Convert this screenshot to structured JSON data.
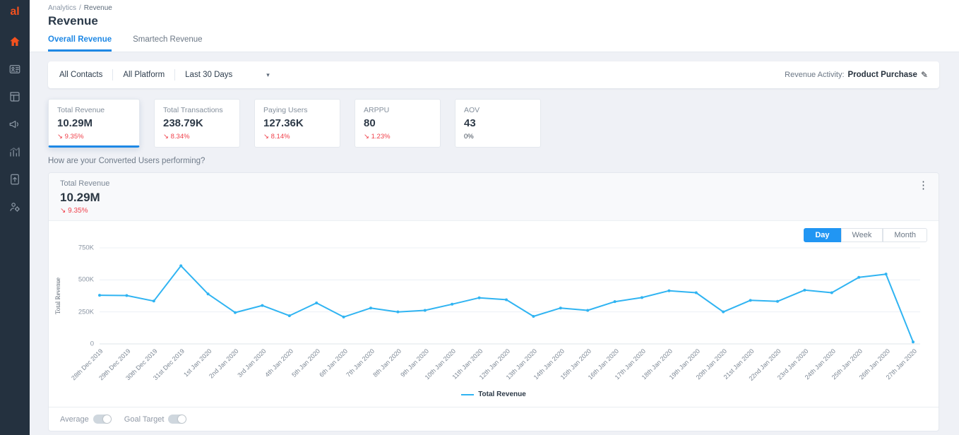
{
  "sidebar": {
    "logo": "al",
    "items": [
      "home",
      "contacts",
      "campaigns",
      "announcements",
      "analytics",
      "export",
      "admin"
    ]
  },
  "breadcrumb": {
    "parent": "Analytics",
    "separator": "/",
    "current": "Revenue"
  },
  "page_title": "Revenue",
  "tabs": [
    {
      "label": "Overall Revenue",
      "active": true
    },
    {
      "label": "Smartech Revenue",
      "active": false
    }
  ],
  "filter_bar": {
    "contacts": "All Contacts",
    "platform": "All Platform",
    "date_range": "Last 30 Days",
    "revenue_activity_label": "Revenue Activity:",
    "revenue_activity_value": "Product Purchase"
  },
  "icons": {
    "delta_down": "↘",
    "pencil": "✎",
    "kebab": "⋮",
    "chevron_down": "▾"
  },
  "kpis": [
    {
      "label": "Total Revenue",
      "value": "10.29M",
      "arrow": "↘",
      "delta": "9.35%"
    },
    {
      "label": "Total Transactions",
      "value": "238.79K",
      "arrow": "↘",
      "delta": "8.34%"
    },
    {
      "label": "Paying Users",
      "value": "127.36K",
      "arrow": "↘",
      "delta": "8.14%"
    },
    {
      "label": "ARPPU",
      "value": "80",
      "arrow": "↘",
      "delta": "1.23%"
    },
    {
      "label": "AOV",
      "value": "43",
      "delta": "0%"
    }
  ],
  "section_question": "How are your Converted Users performing?",
  "chart_card": {
    "title": "Total Revenue",
    "value": "10.29M",
    "arrow": "↘",
    "delta": "9.35%",
    "granularity": [
      "Day",
      "Week",
      "Month"
    ],
    "granularity_active": "Day",
    "legend": "Total Revenue",
    "toggles": [
      {
        "label": "Average",
        "on": false
      },
      {
        "label": "Goal Target",
        "on": false
      }
    ]
  },
  "colors": {
    "accent": "#1e88e5",
    "line": "#30b4f2",
    "delta_negative": "#f0414b",
    "sidebar_bg": "#24313f",
    "logo": "#f4511e",
    "granularity_active_bg": "#2196f3"
  },
  "chart_data": {
    "type": "line",
    "title": "Total Revenue",
    "xlabel": "",
    "ylabel": "Total Revenue",
    "ylim": [
      0,
      750000
    ],
    "yticks": [
      "0",
      "250K",
      "500K",
      "750K"
    ],
    "ytick_values": [
      0,
      250000,
      500000,
      750000
    ],
    "grid": true,
    "legend_position": "bottom",
    "categories": [
      "28th Dec 2019",
      "29th Dec 2019",
      "30th Dec 2019",
      "31st Dec 2019",
      "1st Jan 2020",
      "2nd Jan 2020",
      "3rd Jan 2020",
      "4th Jan 2020",
      "5th Jan 2020",
      "6th Jan 2020",
      "7th Jan 2020",
      "8th Jan 2020",
      "9th Jan 2020",
      "10th Jan 2020",
      "11th Jan 2020",
      "12th Jan 2020",
      "13th Jan 2020",
      "14th Jan 2020",
      "15th Jan 2020",
      "16th Jan 2020",
      "17th Jan 2020",
      "18th Jan 2020",
      "19th Jan 2020",
      "20th Jan 2020",
      "21st Jan 2020",
      "22nd Jan 2020",
      "23rd Jan 2020",
      "24th Jan 2020",
      "25th Jan 2020",
      "26th Jan 2020",
      "27th Jan 2020"
    ],
    "series": [
      {
        "name": "Total Revenue",
        "color": "#30b4f2",
        "values": [
          380000,
          378000,
          335000,
          610000,
          390000,
          245000,
          300000,
          220000,
          320000,
          210000,
          280000,
          250000,
          262000,
          310000,
          360000,
          345000,
          215000,
          280000,
          262000,
          330000,
          362000,
          415000,
          400000,
          250000,
          340000,
          332000,
          420000,
          400000,
          520000,
          545000,
          15000
        ]
      }
    ]
  }
}
